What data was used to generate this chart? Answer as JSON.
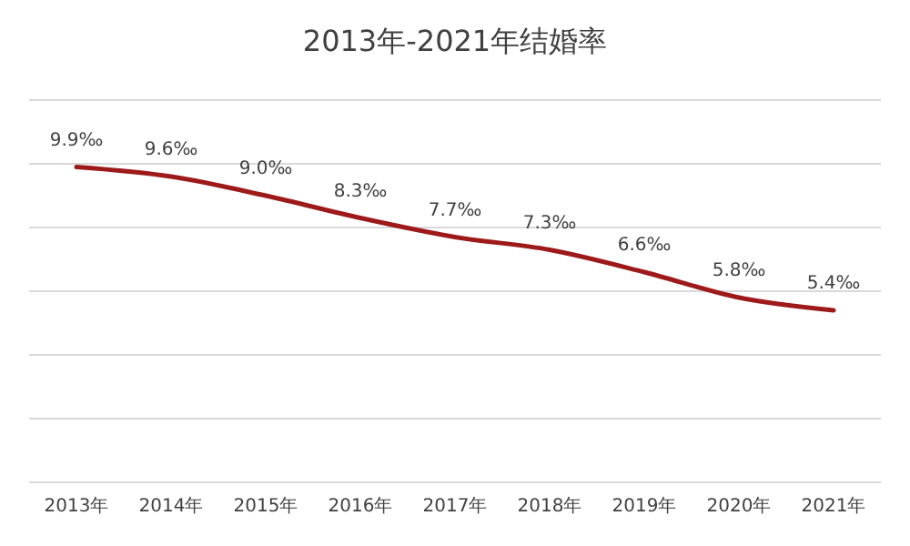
{
  "chart_data": {
    "type": "line",
    "title": "2013年-2021年结婚率",
    "categories": [
      "2013年",
      "2014年",
      "2015年",
      "2016年",
      "2017年",
      "2018年",
      "2019年",
      "2020年",
      "2021年"
    ],
    "series": [
      {
        "color": "#9e1a1a",
        "values": [
          9.9,
          9.6,
          9.0,
          8.3,
          7.7,
          7.3,
          6.6,
          5.8,
          5.4
        ],
        "value_labels": [
          "9.9‰",
          "9.6‰",
          "9.0‰",
          "8.3‰",
          "7.7‰",
          "7.3‰",
          "6.6‰",
          "5.8‰",
          "5.4‰"
        ]
      }
    ],
    "ylim": [
      0,
      12
    ],
    "yticks": [
      {
        "value": 0,
        "label": null
      },
      {
        "value": 2,
        "label": null
      },
      {
        "value": 4,
        "label": null
      },
      {
        "value": 6,
        "label": null
      },
      {
        "value": 8,
        "label": null
      },
      {
        "value": 10,
        "label": null
      },
      {
        "value": 12,
        "label": null
      }
    ],
    "grid": "y",
    "tick_labels": "x",
    "marker": "none",
    "line_style": "solid"
  }
}
